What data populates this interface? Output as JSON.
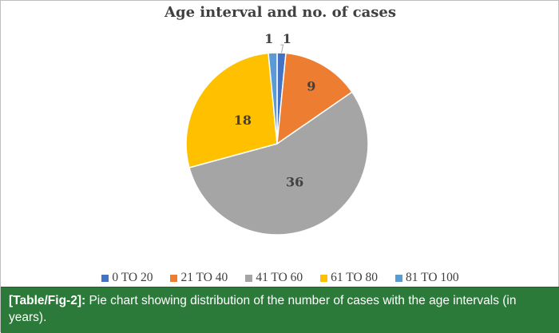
{
  "chart_data": {
    "type": "pie",
    "title": "Age interval and no. of cases",
    "categories": [
      "0 TO 20",
      "21 TO 40",
      "41 TO 60",
      "61 TO 80",
      "81 TO 100"
    ],
    "values": [
      1,
      9,
      36,
      18,
      1
    ],
    "colors": [
      "#4472c4",
      "#ed7d31",
      "#a5a5a5",
      "#ffc000",
      "#5b9bd5"
    ],
    "data_labels": [
      "1",
      "9",
      "36",
      "18",
      "1"
    ],
    "legend_position": "bottom"
  },
  "caption": {
    "label": "[Table/Fig-2]:",
    "text": "Pie chart showing distribution of the number of cases with the age intervals (in years)."
  }
}
